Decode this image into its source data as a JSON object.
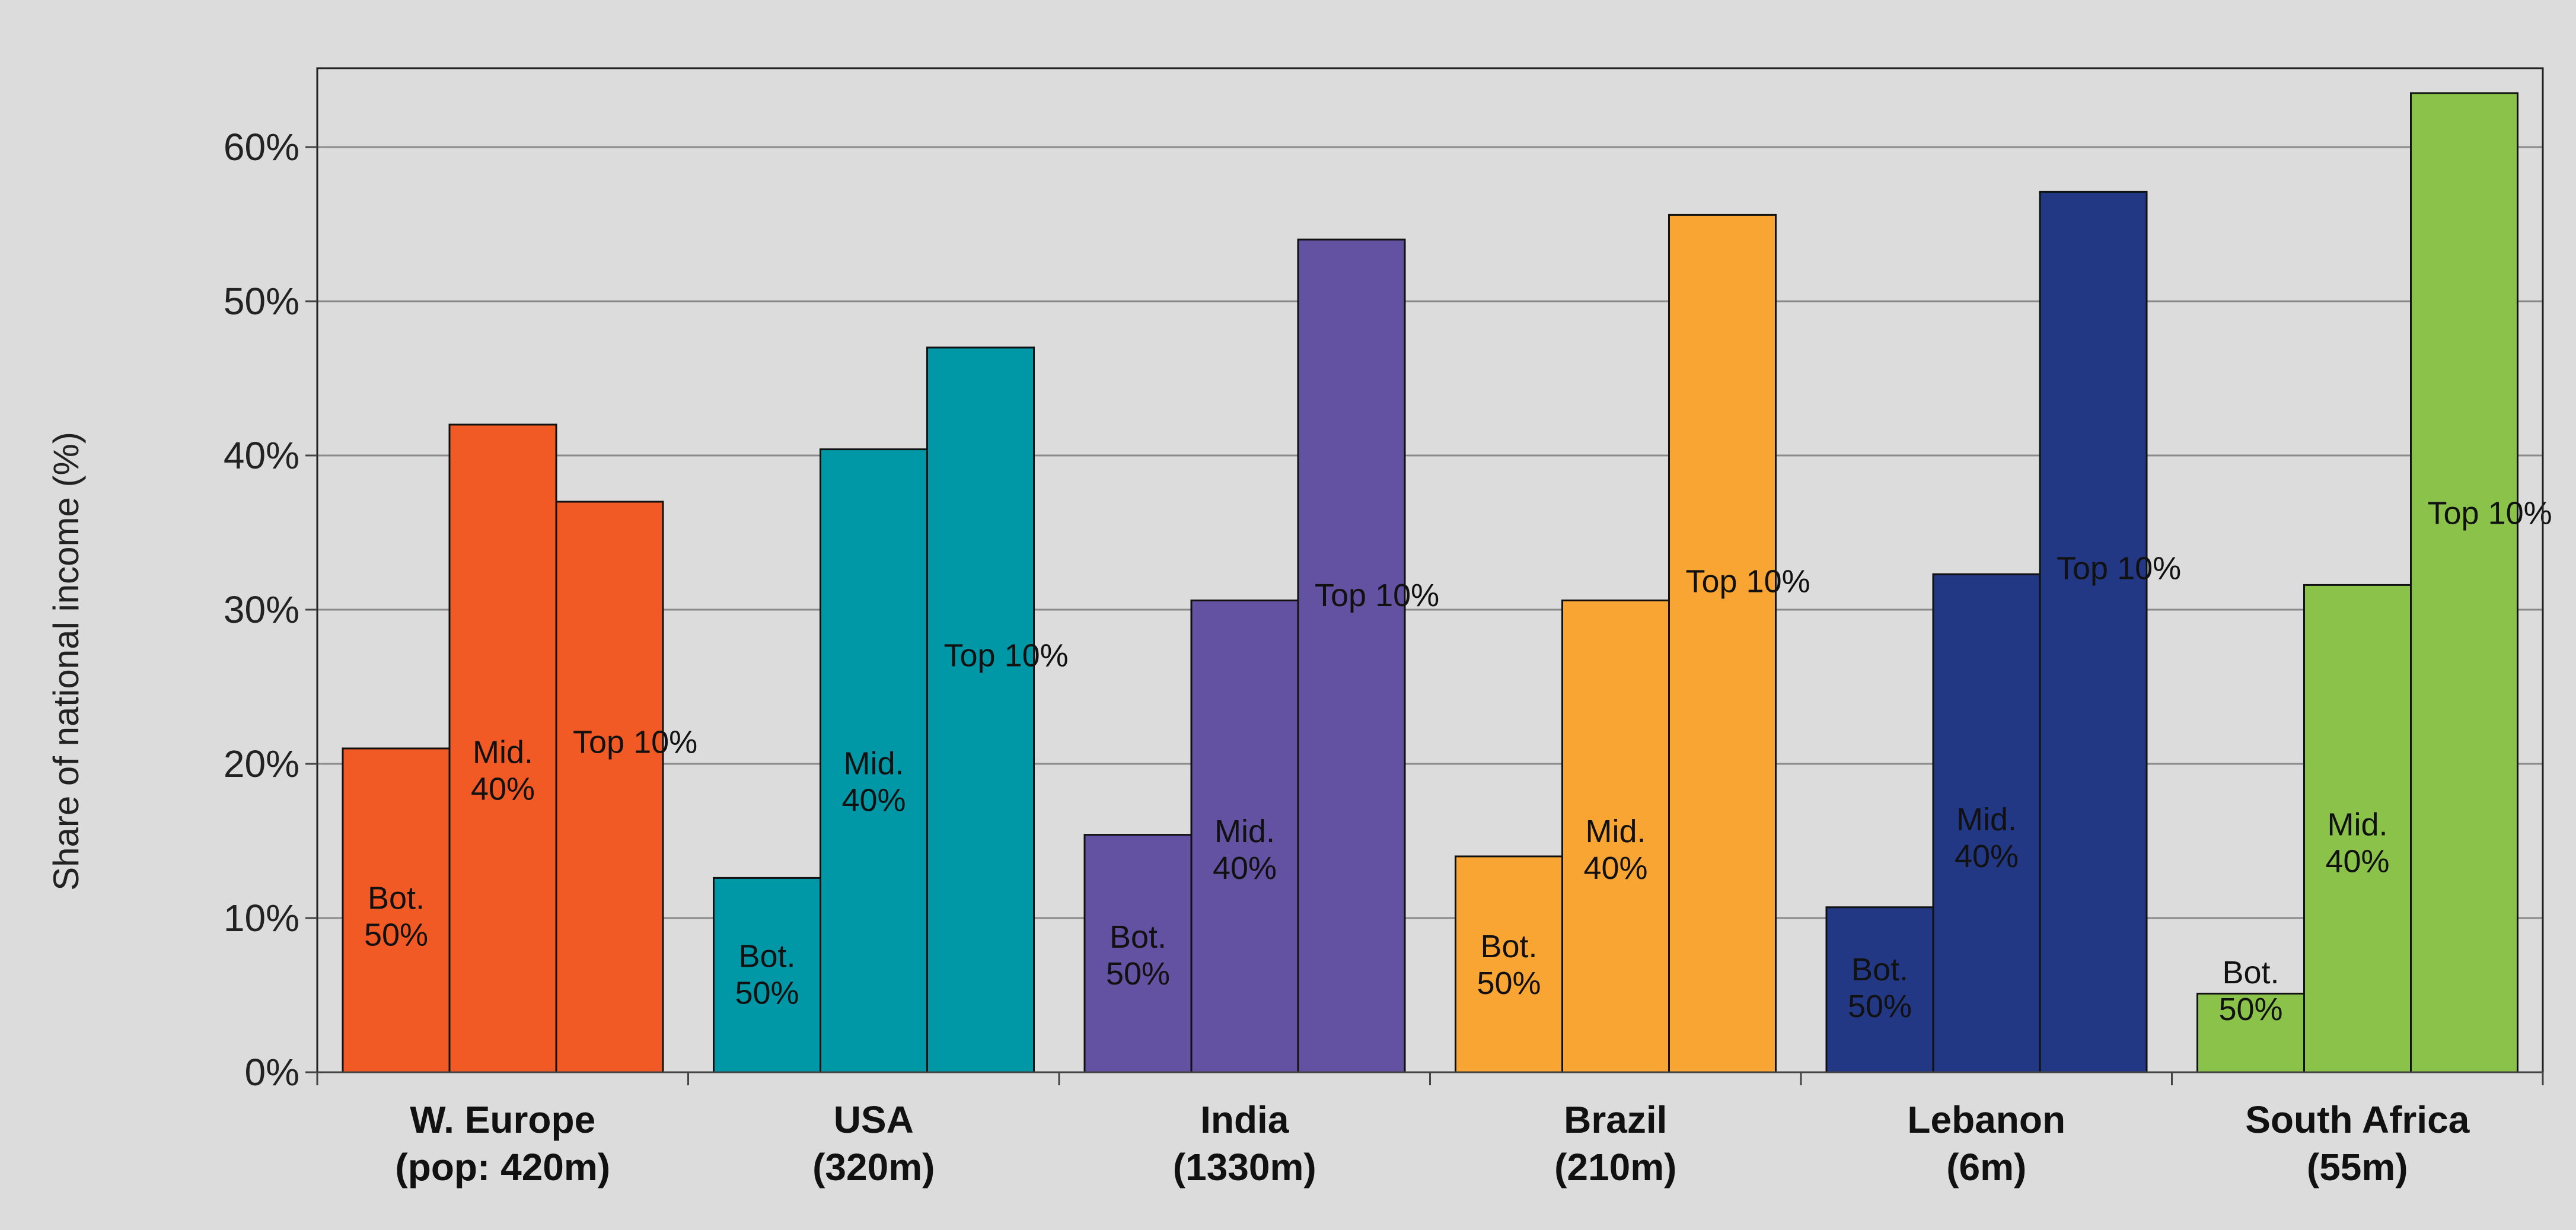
{
  "chart_data": {
    "type": "bar",
    "title": "",
    "xlabel": "",
    "ylabel": "Share of national income (%)",
    "ylim": [
      0,
      65
    ],
    "yticks": [
      "0%",
      "10%",
      "20%",
      "30%",
      "40%",
      "50%",
      "60%"
    ],
    "grid": true,
    "categories": [
      {
        "line1": "W. Europe",
        "line2": "(pop: 420m)",
        "color": "#f15a24",
        "values": [
          21,
          42,
          37
        ]
      },
      {
        "line1": "USA",
        "line2": "(320m)",
        "color": "#0097a7",
        "values": [
          12.6,
          40.4,
          47
        ]
      },
      {
        "line1": "India",
        "line2": "(1330m)",
        "color": "#6351a1",
        "values": [
          15.4,
          30.6,
          54
        ]
      },
      {
        "line1": "Brazil",
        "line2": "(210m)",
        "color": "#f9a533",
        "values": [
          14,
          30.6,
          55.6
        ]
      },
      {
        "line1": "Lebanon",
        "line2": "(6m)",
        "color": "#233884",
        "values": [
          10.7,
          32.3,
          57.1
        ]
      },
      {
        "line1": "South Africa",
        "line2": "(55m)",
        "color": "#8bc34a",
        "values": [
          5.1,
          31.6,
          63.5
        ]
      }
    ],
    "series_labels": [
      [
        "Bot.",
        "50%"
      ],
      [
        "Mid.",
        "40%"
      ],
      [
        "Top 10%"
      ]
    ]
  }
}
